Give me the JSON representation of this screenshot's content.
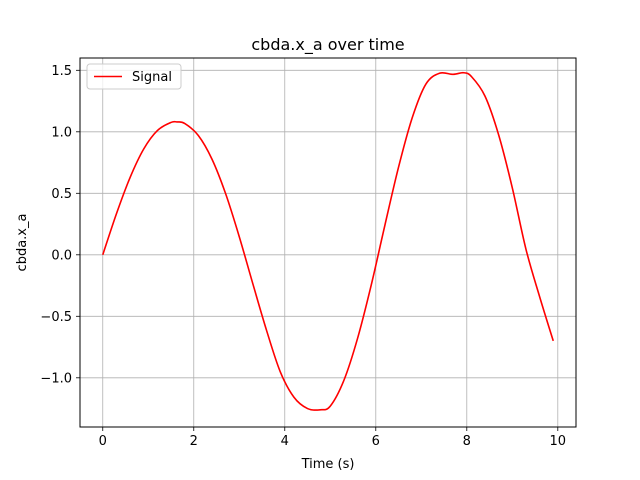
{
  "chart_data": {
    "type": "line",
    "title": "cbda.x_a over time",
    "xlabel": "Time (s)",
    "ylabel": "cbda.x_a",
    "xlim": [
      -0.5,
      10.4
    ],
    "ylim": [
      -1.4,
      1.6
    ],
    "x_ticks": [
      0,
      2,
      4,
      6,
      8,
      10
    ],
    "x_tick_labels": [
      "0",
      "2",
      "4",
      "6",
      "8",
      "10"
    ],
    "y_ticks": [
      -1.0,
      -0.5,
      0.0,
      0.5,
      1.0,
      1.5
    ],
    "y_tick_labels": [
      "−1.0",
      "−0.5",
      "0.0",
      "0.5",
      "1.0",
      "1.5"
    ],
    "grid": true,
    "legend_position": "top-left",
    "series": [
      {
        "name": "Signal",
        "color": "#ff0000",
        "x": [
          0,
          0.3,
          0.6,
          0.9,
          1.2,
          1.5,
          1.63,
          1.8,
          2.1,
          2.4,
          2.7,
          3.0,
          3.3,
          3.6,
          3.9,
          4.2,
          4.5,
          4.78,
          5.0,
          5.3,
          5.6,
          5.9,
          6.2,
          6.5,
          6.8,
          7.1,
          7.4,
          7.7,
          7.93,
          8.1,
          8.4,
          8.7,
          9.0,
          9.3,
          9.6,
          9.9
        ],
        "y": [
          0.0,
          0.333,
          0.628,
          0.86,
          1.01,
          1.076,
          1.08,
          1.068,
          0.97,
          0.778,
          0.497,
          0.147,
          -0.238,
          -0.615,
          -0.95,
          -1.157,
          -1.25,
          -1.26,
          -1.23,
          -1.02,
          -0.679,
          -0.246,
          0.24,
          0.712,
          1.113,
          1.387,
          1.476,
          1.467,
          1.48,
          1.45,
          1.29,
          0.975,
          0.545,
          0.046,
          -0.34,
          -0.7
        ]
      }
    ]
  }
}
